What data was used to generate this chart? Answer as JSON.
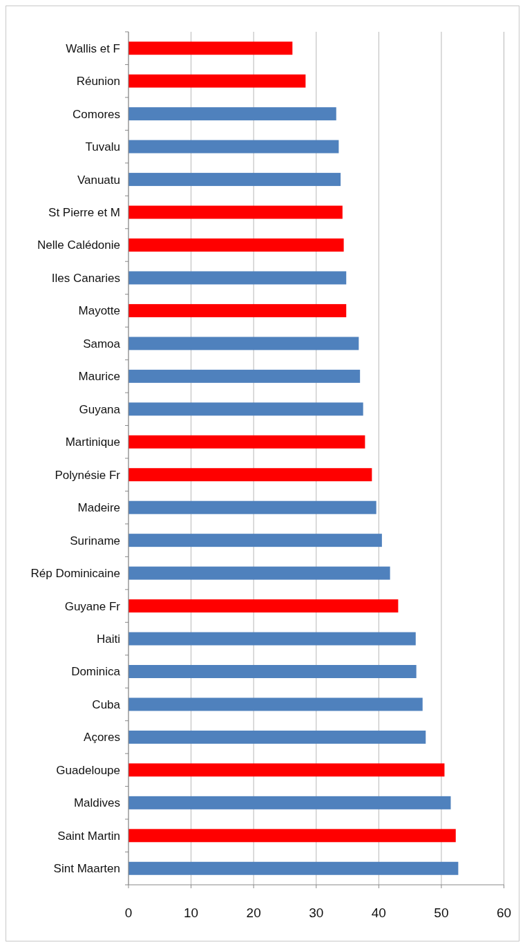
{
  "chart_data": {
    "type": "bar",
    "orientation": "horizontal",
    "categories": [
      "Wallis et F",
      "Réunion",
      "Comores",
      "Tuvalu",
      "Vanuatu",
      "St Pierre et M",
      "Nelle Calédonie",
      "Iles Canaries",
      "Mayotte",
      "Samoa",
      "Maurice",
      "Guyana",
      "Martinique",
      "Polynésie Fr",
      "Madeire",
      "Suriname",
      "Rép Dominicaine",
      "Guyane Fr",
      "Haiti",
      "Dominica",
      "Cuba",
      "Açores",
      "Guadeloupe",
      "Maldives",
      "Saint Martin",
      "Sint Maarten"
    ],
    "values": [
      26.2,
      28.3,
      33.2,
      33.6,
      33.9,
      34.2,
      34.4,
      34.8,
      34.8,
      36.8,
      37.0,
      37.5,
      37.8,
      38.9,
      39.6,
      40.5,
      41.8,
      43.1,
      45.9,
      46.0,
      47.0,
      47.5,
      50.5,
      51.5,
      52.3,
      52.7
    ],
    "colors": [
      "#ff0000",
      "#ff0000",
      "#4f81bd",
      "#4f81bd",
      "#4f81bd",
      "#ff0000",
      "#ff0000",
      "#4f81bd",
      "#ff0000",
      "#4f81bd",
      "#4f81bd",
      "#4f81bd",
      "#ff0000",
      "#ff0000",
      "#4f81bd",
      "#4f81bd",
      "#4f81bd",
      "#ff0000",
      "#4f81bd",
      "#4f81bd",
      "#4f81bd",
      "#4f81bd",
      "#ff0000",
      "#4f81bd",
      "#ff0000",
      "#4f81bd"
    ],
    "xlim": [
      0,
      60
    ],
    "xticks": [
      0,
      10,
      20,
      30,
      40,
      50,
      60
    ],
    "grid": "x"
  }
}
